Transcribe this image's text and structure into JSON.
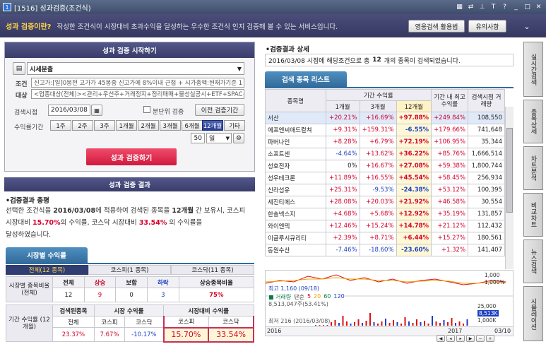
{
  "window": {
    "code": "1516",
    "title": "성과검증(조건식)"
  },
  "banner": {
    "question": "성과 검증이란?",
    "description": "작성한 조건식이 시장대비 초과수익을 달성하는 우수한 조건식 인지 검증해 볼 수 있는 서비스입니다.",
    "btn_guide": "영웅검색 활용법",
    "btn_notice": "유의사항"
  },
  "start": {
    "header": "성과 검증 시작하기",
    "condition_name": "시세분출",
    "condition_label": "조건",
    "condition_text": "신고가:[일]0봉전 고가가 45봉중 신고가에 8%이내 근접 + 시가총액:현재가기준 1",
    "target_label": "대상",
    "target_text": "<업종대상(전체)><관리+우선주+거래정지+정리매매+불성실공시+ETF+SPAC+ET",
    "date_label": "검색시점",
    "date": "2016/03/08",
    "split_label": "분단위 검증",
    "prev_btn": "이전 검증기간",
    "period_label": "수익률기간",
    "periods": [
      "1주",
      "2주",
      "3주",
      "1개월",
      "2개월",
      "3개월",
      "6개월",
      "12개월",
      "기타"
    ],
    "selected_period": "12개월",
    "days": "50",
    "days_unit": "일",
    "run_btn": "성과 검증하기"
  },
  "result": {
    "header": "성과 검증 결과",
    "summary_title": "•검증결과 총평",
    "summary_p1": "선택한 조건식을 ",
    "summary_date": "2016/03/08",
    "summary_p2": "에 적용하여 검색된 종목을 ",
    "summary_count": "12개월",
    "summary_p3": " 간 보유시, 코스피",
    "summary_p4": "시장대비 ",
    "summary_kospi": "15.70%",
    "summary_p5": "의 수익률, 코스닥 시장대비 ",
    "summary_kosdaq": "33.54%",
    "summary_p6": " 의 수익률을",
    "summary_p7": "달성하였습니다."
  },
  "market": {
    "tab": "시장별 수익률",
    "subtabs": [
      "전체(12 종목)",
      "코스피(1 종목)",
      "코스닥(11 종목)"
    ],
    "row1_label": "시장별 종목비율 (전체)",
    "h_all": "전체",
    "h_up": "상승",
    "h_flat": "보합",
    "h_down": "하락",
    "h_ratio": "상승종목비율",
    "v_all": "12",
    "v_up": "9",
    "v_flat": "0",
    "v_down": "3",
    "v_ratio": "75%",
    "row2_label": "기간 수익률 (12개월)",
    "h_found": "검색된종목",
    "h_market": "시장 수익률",
    "h_excess": "시장대비 수익률",
    "sh_all": "전체",
    "sh_kospi": "코스피",
    "sh_kosdaq": "코스닥",
    "sh_kospi2": "코스피",
    "sh_kosdaq2": "코스닥",
    "r_all": "23.37%",
    "r_kospi": "7.67%",
    "r_kosdaq": "-10.17%",
    "r_ex_kospi": "15.70%",
    "r_ex_kosdaq": "33.54%"
  },
  "detail": {
    "title": "•검증결과 상세",
    "line_p1": "2016/03/08 시점에 해당조건으로 총 ",
    "line_count": "12",
    "line_p2": " 개의 종목이 검색되었습니다.",
    "list_tab": "검색 종목 리스트",
    "col_name": "종목명",
    "col_period": "기간 수익률",
    "col_1m": "1개월",
    "col_3m": "3개월",
    "col_12m": "12개월",
    "col_max": "기간 내 최고수익률",
    "col_vol": "검색시점 거래량",
    "rows": [
      {
        "name": "서산",
        "m1": "+20.21%",
        "m3": "+16.69%",
        "m12": "+97.88%",
        "max": "+249.84%",
        "vol": "108,550"
      },
      {
        "name": "에프엔씨애드컬쳐",
        "m1": "+9.31%",
        "m3": "+159.31%",
        "m12": "-6.55%",
        "max": "+179.66%",
        "vol": "741,648"
      },
      {
        "name": "파버나인",
        "m1": "+8.28%",
        "m3": "+6.79%",
        "m12": "+72.19%",
        "max": "+106.95%",
        "vol": "35,344"
      },
      {
        "name": "소프트센",
        "m1": "-4.64%",
        "m3": "+13.62%",
        "m12": "+36.22%",
        "max": "+85.76%",
        "vol": "1,666,514"
      },
      {
        "name": "성호전자",
        "m1": "0%",
        "m3": "+16.67%",
        "m12": "+27.08%",
        "max": "+59.38%",
        "vol": "1,800,744"
      },
      {
        "name": "성우테크론",
        "m1": "+11.89%",
        "m3": "+16.55%",
        "m12": "+45.54%",
        "max": "+58.45%",
        "vol": "256,934"
      },
      {
        "name": "신라섬유",
        "m1": "+25.31%",
        "m3": "-9.53%",
        "m12": "-24.38%",
        "max": "+53.12%",
        "vol": "100,395"
      },
      {
        "name": "세진티에스",
        "m1": "+28.08%",
        "m3": "+20.03%",
        "m12": "+21.92%",
        "max": "+46.58%",
        "vol": "30,554"
      },
      {
        "name": "한솔넥스지",
        "m1": "+4.68%",
        "m3": "+5.68%",
        "m12": "+12.92%",
        "max": "+35.19%",
        "vol": "131,857"
      },
      {
        "name": "와이엔텍",
        "m1": "+12.46%",
        "m3": "+15.24%",
        "m12": "+14.78%",
        "max": "+21.12%",
        "vol": "112,432"
      },
      {
        "name": "이글루시큐리티",
        "m1": "+2.39%",
        "m3": "+8.71%",
        "m12": "+6.44%",
        "max": "+15.27%",
        "vol": "180,561"
      },
      {
        "name": "동원수산",
        "m1": "-7.46%",
        "m3": "-18.60%",
        "m12": "-23.60%",
        "max": "+1.32%",
        "vol": "141,407"
      }
    ],
    "chart_high": "최고 1,160 (09/18)",
    "chart_vol_label": "거래량",
    "chart_vol_unit": "단순",
    "chart_ma": [
      "5",
      "20",
      "60",
      "120"
    ],
    "chart_vol_val": "8,513,047주(53.41%)",
    "chart_low_label": "최저 216 (2016/03/08)",
    "chart_date1": "2016",
    "chart_date2": "2017",
    "chart_date3": "03/10",
    "chart_axis1": "25,000",
    "chart_axis2": "8,513K",
    "chart_axis3": "1,000K",
    "chart_axis_top": "1,000",
    "chart_axis_top2": "1,000%"
  },
  "side_tabs": [
    "실시간검색",
    "종목상세",
    "차트분석",
    "비교차트",
    "뉴스검색",
    "시뮬레이션"
  ]
}
